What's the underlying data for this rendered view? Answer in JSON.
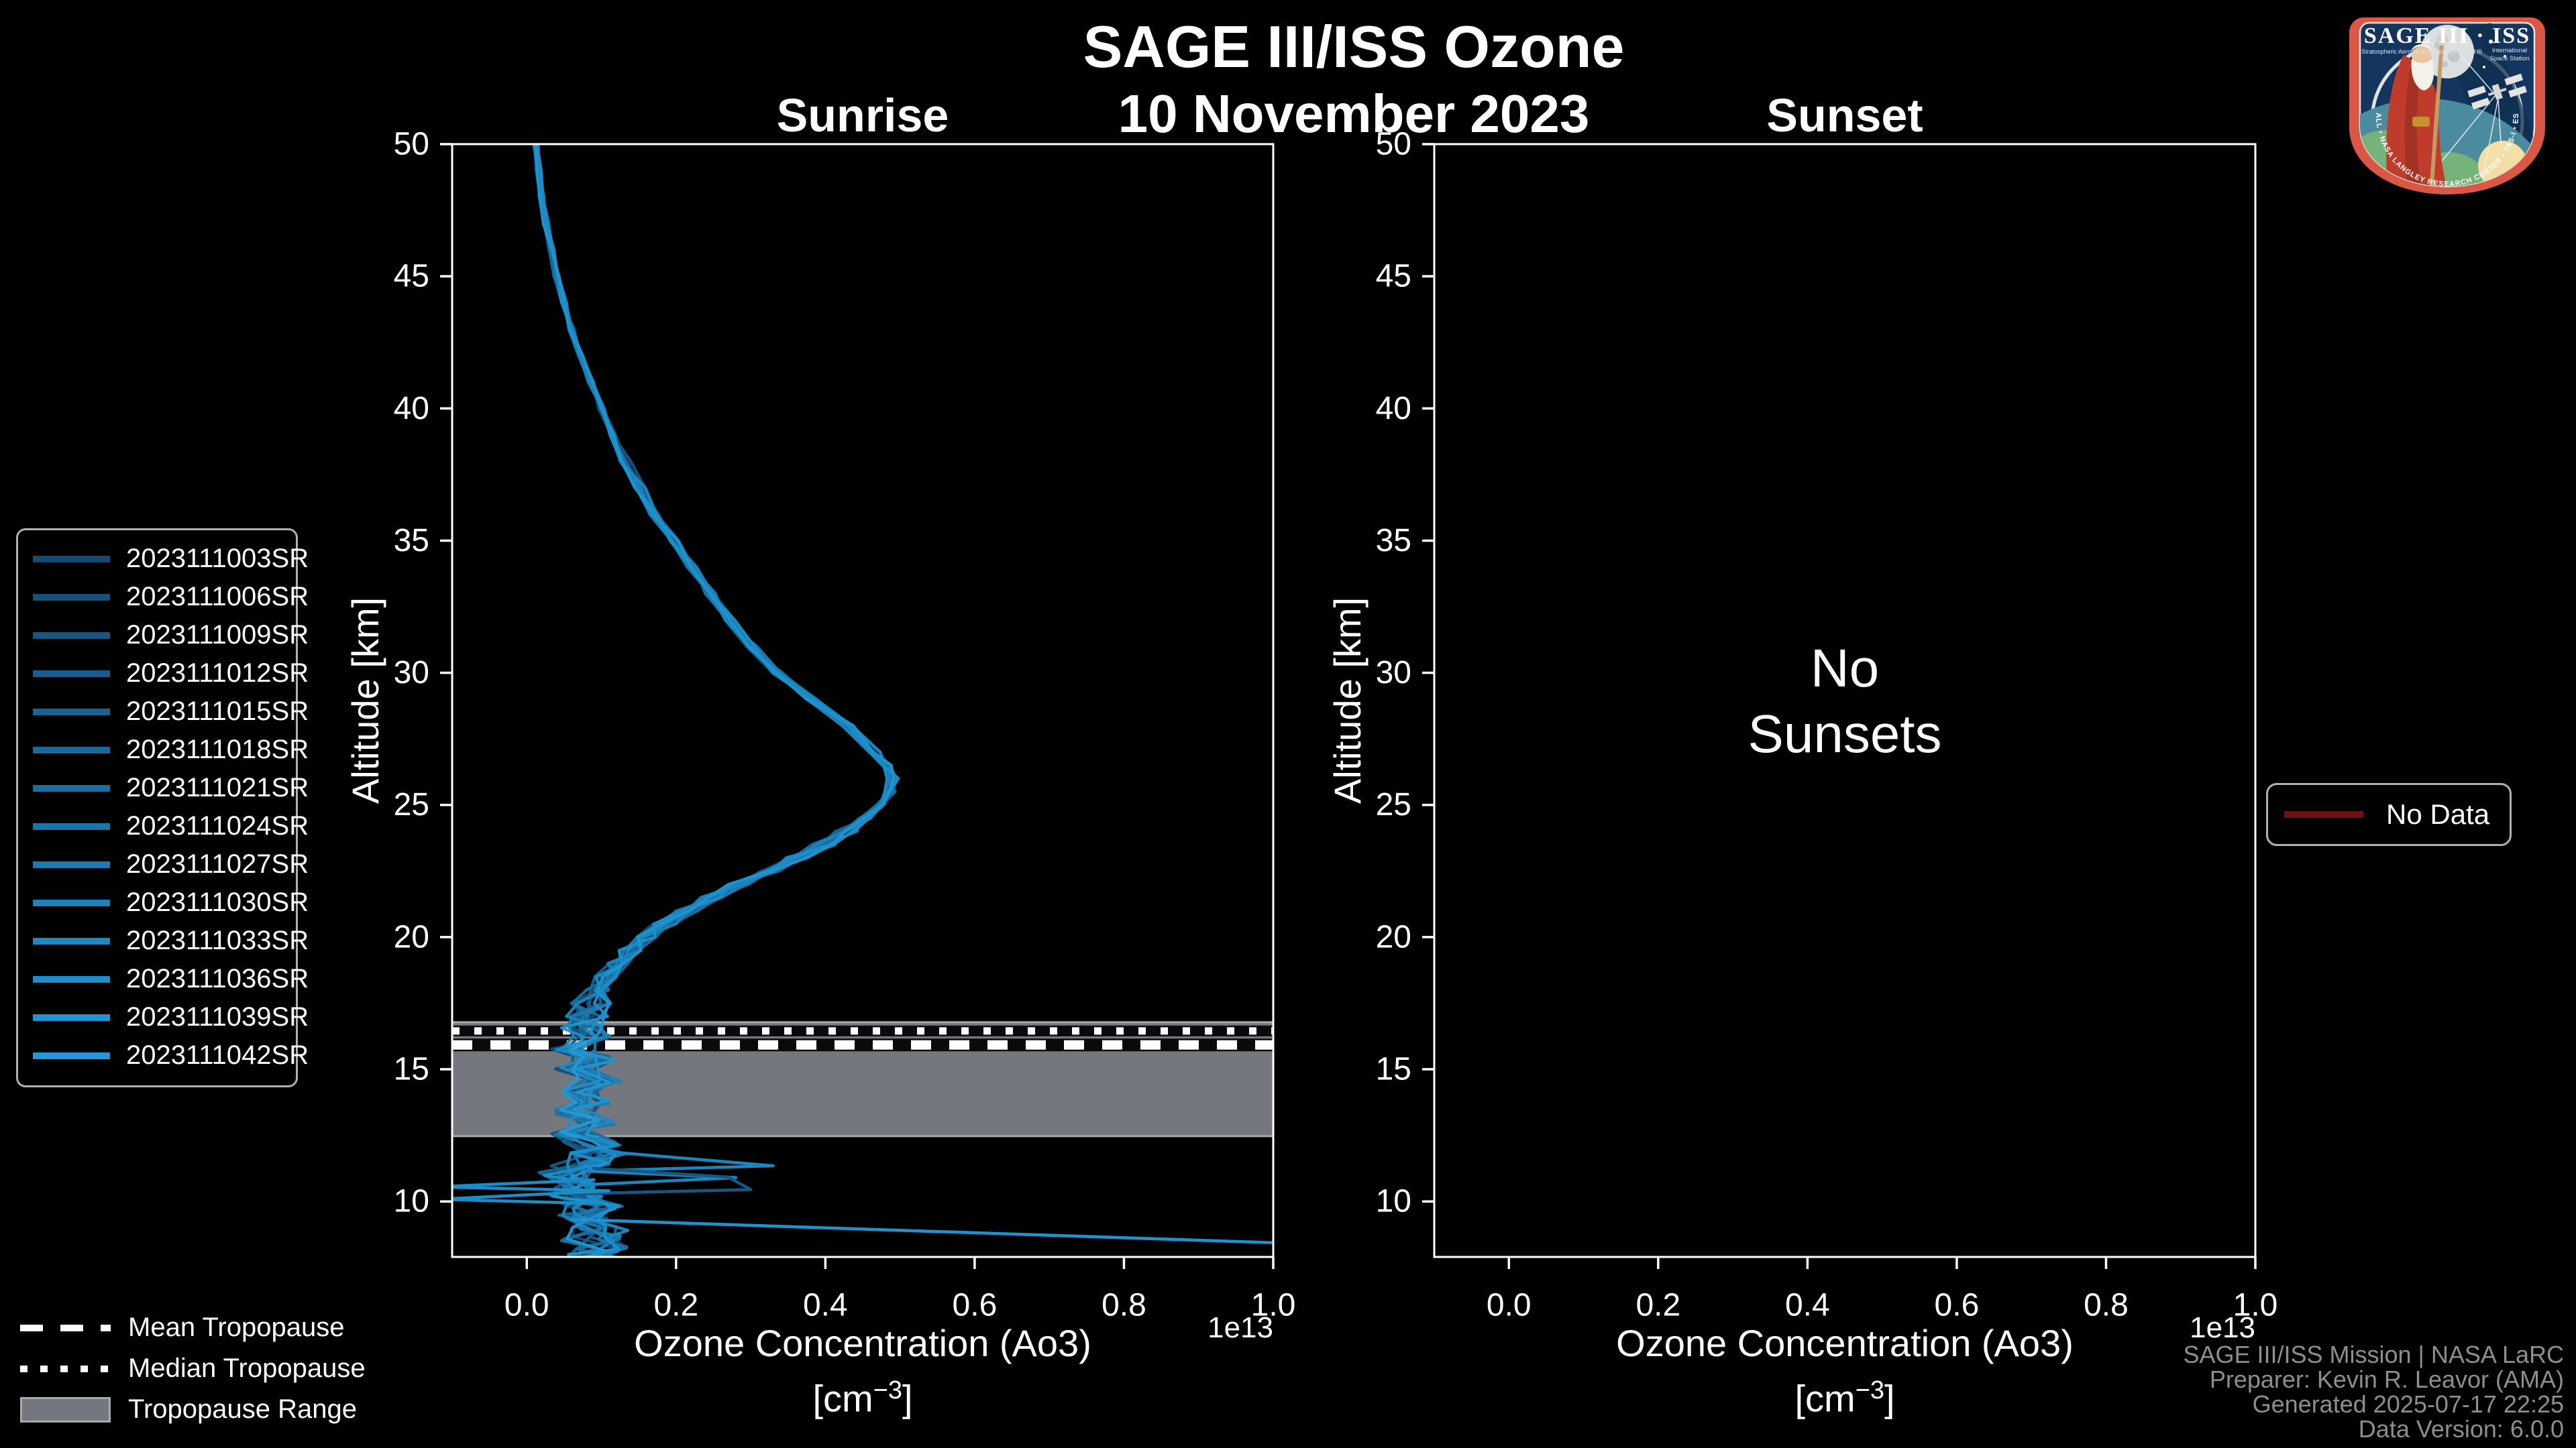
{
  "header": {
    "title": "SAGE III/ISS Ozone",
    "date": "10 November 2023"
  },
  "panels": {
    "left": {
      "title": "Sunrise",
      "xlabel": "Ozone Concentration (Ao3)",
      "ylabel": "Altitude [km]"
    },
    "right": {
      "title": "Sunset",
      "xlabel": "Ozone Concentration (Ao3)",
      "ylabel": "Altitude [km]",
      "message_lines": [
        "No",
        "Sunsets"
      ]
    }
  },
  "units": {
    "pre": "[cm",
    "sup": "−3",
    "post": "]"
  },
  "legend_tropopause": {
    "mean": "Mean Tropopause",
    "median": "Median Tropopause",
    "range": "Tropopause Range"
  },
  "legend_no_data": {
    "label": "No Data",
    "line_color": "#6e1012"
  },
  "footer": {
    "lines": [
      "SAGE III/ISS Mission | NASA LaRC",
      "Preparer: Kevin R. Leavor (AMA)",
      "Generated 2025-07-17 22:25",
      "Data Version: 6.0.0"
    ]
  },
  "logo": {
    "title": "SAGE III · ISS",
    "sub_left": "Stratospheric Aerosol and Gas Experiment III",
    "sub_right_1": "International",
    "sub_right_2": "Space Station",
    "ring_text": "BALL • NASA LANGLEY RESEARCH CENTER • TAS-I • ESA"
  },
  "chart_data": {
    "type": "line",
    "title": "SAGE III/ISS Ozone — 10 November 2023",
    "xlabel": "Ozone Concentration (Ao3) [cm^-3]",
    "ylabel": "Altitude [km]",
    "offset_text": "1e13",
    "xlim": [
      -0.1,
      1.0
    ],
    "ylim": [
      7.9,
      50
    ],
    "xticks": [
      "0.0",
      "0.2",
      "0.4",
      "0.6",
      "0.8",
      "1.0"
    ],
    "xtick_values": [
      0.0,
      0.2,
      0.4,
      0.6,
      0.8,
      1.0
    ],
    "yticks": [
      10,
      15,
      20,
      25,
      30,
      35,
      40,
      45,
      50
    ],
    "grid": false,
    "legend_position": "outside-left",
    "series_names": [
      "2023111003SR",
      "2023111006SR",
      "2023111009SR",
      "2023111012SR",
      "2023111015SR",
      "2023111018SR",
      "2023111021SR",
      "2023111024SR",
      "2023111027SR",
      "2023111030SR",
      "2023111033SR",
      "2023111036SR",
      "2023111039SR",
      "2023111042SR"
    ],
    "series_color_start": "#154a73",
    "series_color_end": "#1f9ad9",
    "mean_profile_alt_conc_1e13": [
      [
        50.3,
        0.012
      ],
      [
        50,
        0.013
      ],
      [
        49,
        0.016
      ],
      [
        48,
        0.02
      ],
      [
        47,
        0.026
      ],
      [
        46,
        0.033
      ],
      [
        45,
        0.04
      ],
      [
        44,
        0.05
      ],
      [
        43,
        0.06
      ],
      [
        42,
        0.072
      ],
      [
        41,
        0.086
      ],
      [
        40,
        0.1
      ],
      [
        39,
        0.115
      ],
      [
        38,
        0.132
      ],
      [
        37,
        0.152
      ],
      [
        36,
        0.172
      ],
      [
        35,
        0.196
      ],
      [
        34,
        0.22
      ],
      [
        33,
        0.246
      ],
      [
        32,
        0.272
      ],
      [
        31,
        0.302
      ],
      [
        30,
        0.336
      ],
      [
        29,
        0.382
      ],
      [
        28,
        0.43
      ],
      [
        27,
        0.466
      ],
      [
        26.5,
        0.483
      ],
      [
        26,
        0.49
      ],
      [
        25.5,
        0.487
      ],
      [
        25,
        0.474
      ],
      [
        24.5,
        0.453
      ],
      [
        24,
        0.428
      ],
      [
        23.5,
        0.398
      ],
      [
        23,
        0.362
      ],
      [
        22.5,
        0.324
      ],
      [
        22,
        0.284
      ],
      [
        21.5,
        0.248
      ],
      [
        21,
        0.214
      ],
      [
        20.5,
        0.184
      ],
      [
        20,
        0.158
      ],
      [
        19.5,
        0.138
      ],
      [
        19,
        0.12
      ],
      [
        18.5,
        0.105
      ],
      [
        18,
        0.094
      ],
      [
        17.5,
        0.085
      ],
      [
        17,
        0.079
      ],
      [
        16.6,
        0.071
      ],
      [
        16.2,
        0.09
      ],
      [
        15.8,
        0.062
      ],
      [
        15.4,
        0.092
      ],
      [
        15,
        0.066
      ],
      [
        14.6,
        0.098
      ],
      [
        14.2,
        0.07
      ],
      [
        13.8,
        0.091
      ],
      [
        13.4,
        0.066
      ],
      [
        13,
        0.088
      ],
      [
        12.6,
        0.062
      ],
      [
        12.2,
        0.086
      ],
      [
        11.8,
        0.1
      ],
      [
        11.4,
        0.07
      ],
      [
        11,
        0.056
      ],
      [
        10.6,
        0.08
      ],
      [
        10.2,
        0.066
      ],
      [
        9.8,
        0.09
      ],
      [
        9.4,
        0.076
      ],
      [
        9,
        0.094
      ],
      [
        8.6,
        0.086
      ],
      [
        8.2,
        0.1
      ],
      [
        7.9,
        0.09
      ]
    ],
    "features": [
      {
        "name": "long-line-to-right-spine",
        "series": 13,
        "points_alt_conc": [
          [
            9.32,
            0.06
          ],
          [
            8.42,
            1.02
          ]
        ]
      },
      {
        "name": "right-zigzag-bright",
        "series": 11,
        "points_alt_conc": [
          [
            11.9,
            0.1
          ],
          [
            11.35,
            0.33
          ],
          [
            11.15,
            0.08
          ],
          [
            10.9,
            0.28
          ],
          [
            10.62,
            0.07
          ]
        ]
      },
      {
        "name": "right-zigzag-dark",
        "series": 3,
        "points_alt_conc": [
          [
            11.25,
            0.09
          ],
          [
            10.92,
            0.27
          ],
          [
            10.45,
            0.3
          ],
          [
            10.28,
            0.05
          ]
        ]
      },
      {
        "name": "left-spike",
        "series": 12,
        "points_alt_conc": [
          [
            10.82,
            0.09
          ],
          [
            10.55,
            -0.12
          ],
          [
            10.4,
            0.11
          ],
          [
            10.08,
            -0.12
          ],
          [
            9.92,
            0.1
          ]
        ]
      }
    ],
    "tropopause": {
      "mean_km": 15.92,
      "median_km": 16.45,
      "range_km": [
        12.47,
        16.78
      ],
      "band_color": "#74777d",
      "band_edge_color": "#a6a9ad"
    },
    "right_panel": {
      "has_data": false,
      "message": "No Sunsets"
    }
  }
}
